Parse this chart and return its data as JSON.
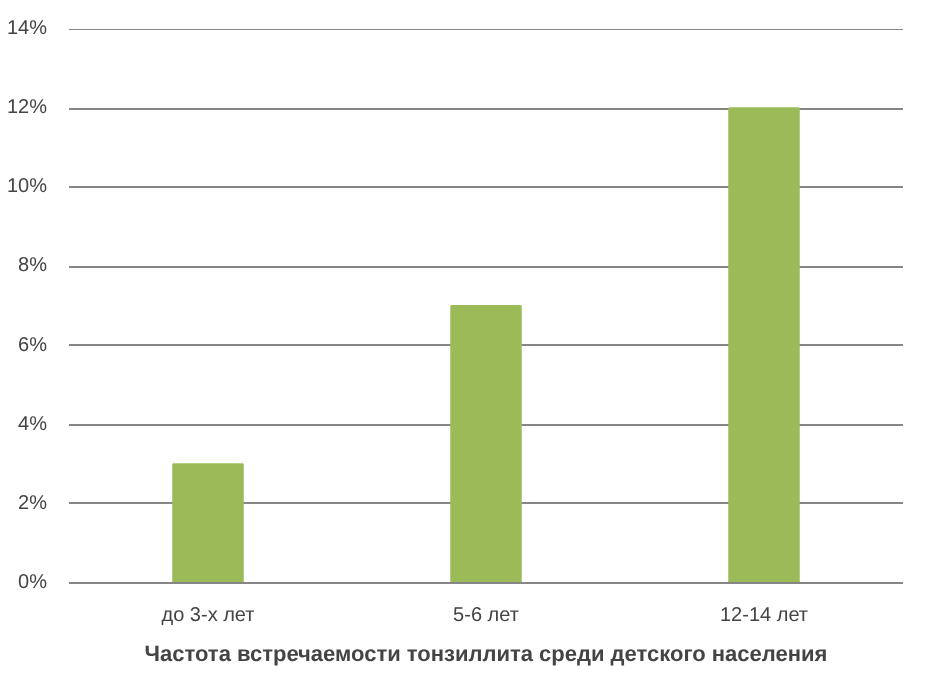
{
  "chart_data": {
    "type": "bar",
    "xlabel": "Частота встречаемости тонзиллита среди детского населения",
    "categories": [
      "до 3-х лет",
      "5-6 лет",
      "12-14 лет"
    ],
    "values": [
      3,
      7,
      12
    ],
    "color": "#9bbb59",
    "ylim": [
      0,
      14
    ],
    "yticks": [
      {
        "value": 0,
        "label": "0%"
      },
      {
        "value": 2,
        "label": "2%"
      },
      {
        "value": 4,
        "label": "4%"
      },
      {
        "value": 6,
        "label": "6%"
      },
      {
        "value": 8,
        "label": "8%"
      },
      {
        "value": 10,
        "label": "10%"
      },
      {
        "value": 12,
        "label": "12%"
      },
      {
        "value": 14,
        "label": "14%"
      }
    ],
    "grid": "y"
  }
}
